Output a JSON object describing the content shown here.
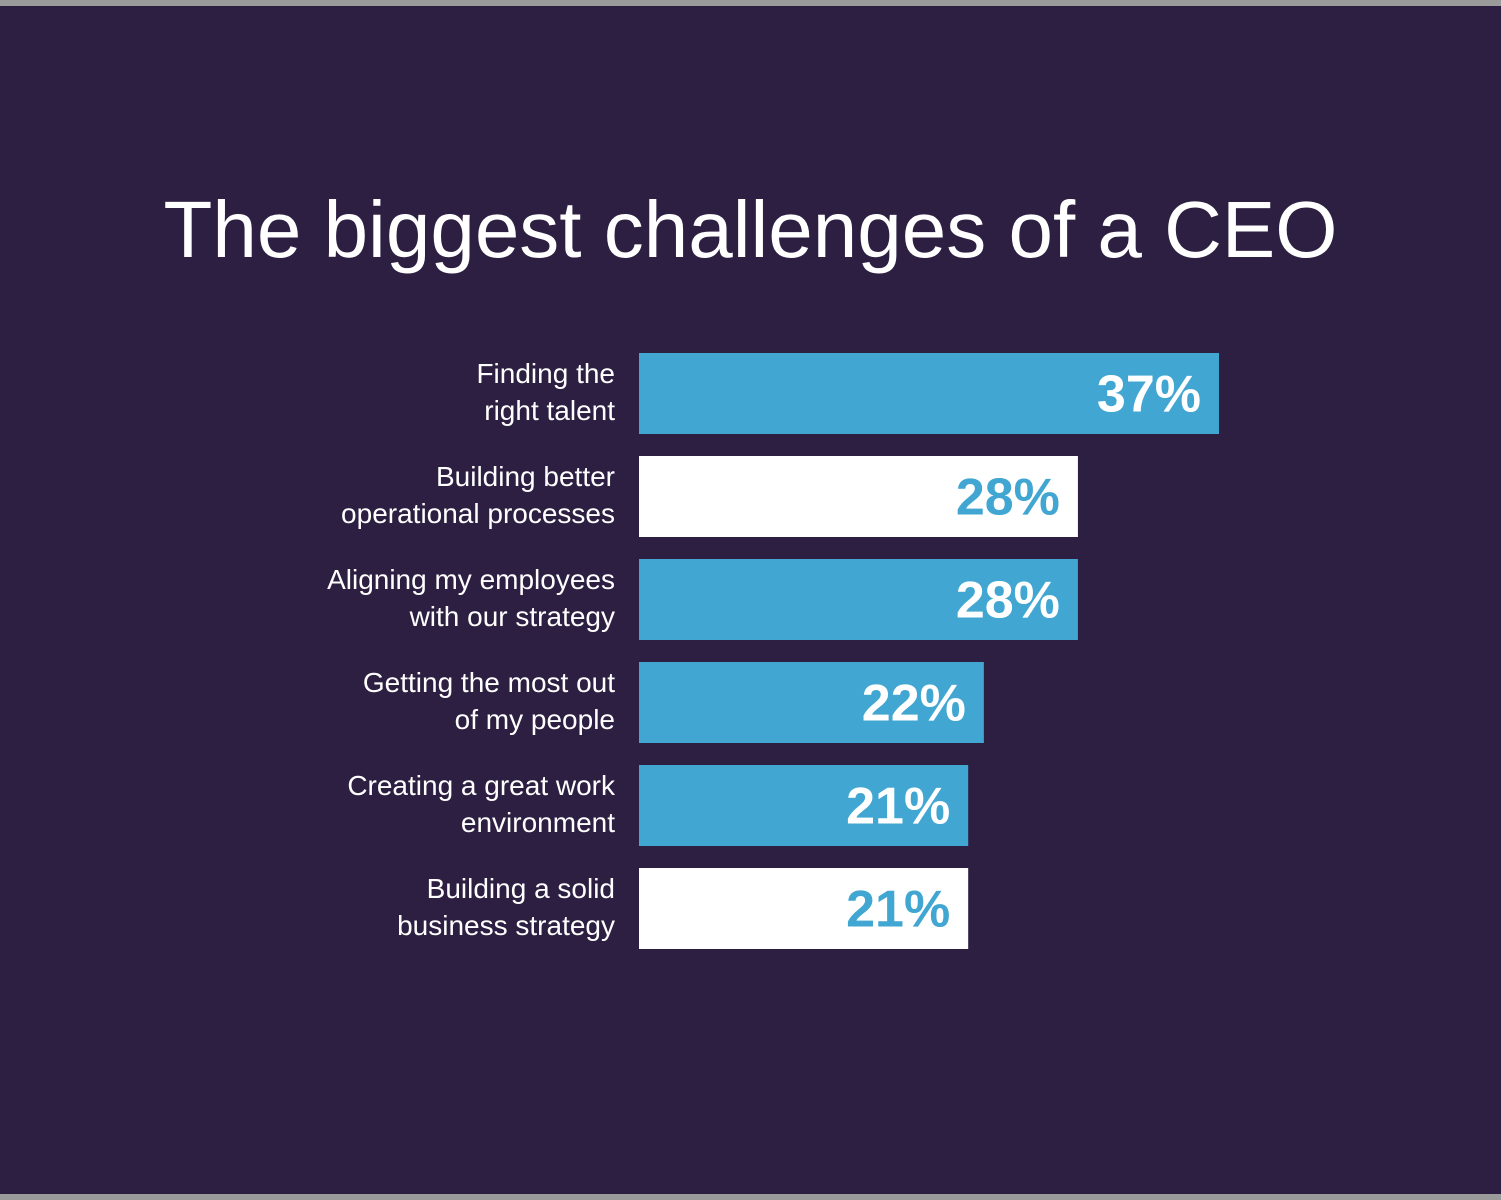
{
  "chart_data": {
    "type": "bar",
    "orientation": "horizontal",
    "title": "The biggest challenges of a CEO",
    "categories": [
      [
        "Finding the",
        "right talent"
      ],
      [
        "Building better",
        "operational processes"
      ],
      [
        "Aligning my employees",
        "with our strategy"
      ],
      [
        "Getting the most out",
        "of my people"
      ],
      [
        "Creating a great work",
        "environment"
      ],
      [
        "Building a solid",
        "business strategy"
      ]
    ],
    "values": [
      37,
      28,
      28,
      22,
      21,
      21
    ],
    "value_labels": [
      "37%",
      "28%",
      "28%",
      "22%",
      "21%",
      "21%"
    ],
    "bar_styles": [
      "accent",
      "light",
      "accent",
      "accent",
      "accent",
      "light"
    ],
    "colors": {
      "background": "#2d1f42",
      "accent": "#41a6d1",
      "light": "#ffffff",
      "text": "#ffffff"
    },
    "xlim": [
      0,
      37
    ],
    "grid": false,
    "legend": "none"
  }
}
